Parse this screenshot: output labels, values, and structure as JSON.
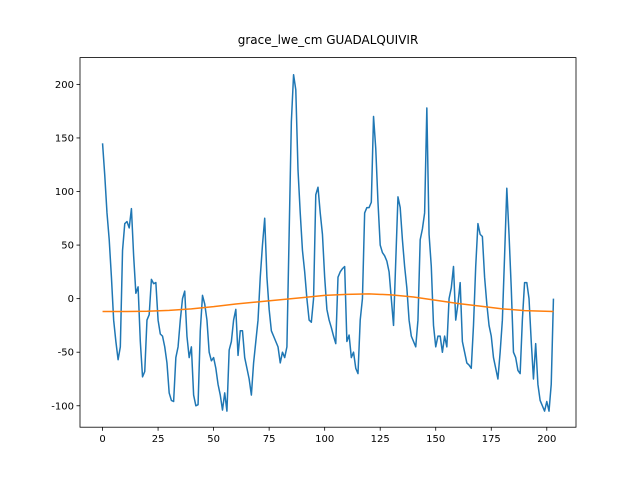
{
  "chart_data": {
    "type": "line",
    "title": "grace_lwe_cm GUADALQUIVIR",
    "xlim": [
      -10.15,
      213.15
    ],
    "xticks": [
      0,
      25,
      50,
      75,
      100,
      125,
      150,
      175,
      200
    ],
    "ylim": [
      -120,
      225
    ],
    "yticks": [
      -100,
      -50,
      0,
      50,
      100,
      150,
      200
    ],
    "series": [
      {
        "color": "#1f77b4",
        "values": [
          145,
          115,
          80,
          55,
          20,
          -20,
          -40,
          -57,
          -45,
          45,
          70,
          72,
          66,
          84,
          40,
          5,
          11,
          -40,
          -73,
          -68,
          -20,
          -15,
          18,
          14,
          15,
          -20,
          -33,
          -35,
          -45,
          -60,
          -88,
          -95,
          -96,
          -55,
          -45,
          -20,
          0,
          7,
          -35,
          -55,
          -45,
          -90,
          -100,
          -99,
          -30,
          3,
          -5,
          -20,
          -50,
          -58,
          -55,
          -65,
          -80,
          -90,
          -104,
          -88,
          -105,
          -48,
          -40,
          -20,
          -10,
          -53,
          -30,
          -30,
          -55,
          -65,
          -75,
          -90,
          -60,
          -40,
          -20,
          20,
          50,
          75,
          20,
          -10,
          -30,
          -35,
          -40,
          -45,
          -60,
          -50,
          -55,
          -45,
          60,
          165,
          209,
          195,
          120,
          80,
          45,
          25,
          0,
          -20,
          -22,
          0,
          97,
          104,
          80,
          60,
          20,
          -10,
          -20,
          -27,
          -35,
          -42,
          20,
          25,
          28,
          30,
          -40,
          -34,
          -55,
          -50,
          -65,
          -70,
          -20,
          0,
          80,
          85,
          85,
          90,
          170,
          140,
          90,
          50,
          43,
          40,
          35,
          25,
          0,
          -25,
          35,
          95,
          85,
          55,
          30,
          10,
          -20,
          -35,
          -40,
          -45,
          -20,
          55,
          65,
          80,
          178,
          60,
          30,
          -25,
          -45,
          -35,
          -35,
          -50,
          -35,
          -45,
          0,
          10,
          30,
          -20,
          -5,
          15,
          -40,
          -50,
          -60,
          -62,
          -65,
          -25,
          30,
          70,
          60,
          58,
          20,
          -5,
          -25,
          -35,
          -55,
          -65,
          -75,
          -50,
          -20,
          40,
          103,
          60,
          10,
          -50,
          -55,
          -67,
          -70,
          -20,
          15,
          15,
          0,
          -40,
          -75,
          -42,
          -80,
          -95,
          -100,
          -105,
          -96,
          -105,
          -80,
          0
        ]
      },
      {
        "color": "#ff7f0e",
        "x": [
          0,
          10,
          20,
          30,
          40,
          50,
          60,
          70,
          80,
          90,
          100,
          110,
          120,
          130,
          140,
          150,
          160,
          170,
          180,
          190,
          203
        ],
        "values": [
          -12,
          -12,
          -11.8,
          -11,
          -9.5,
          -7.5,
          -5,
          -3,
          -1,
          1,
          3,
          4,
          4.5,
          3.5,
          1.5,
          -1.5,
          -4.5,
          -7,
          -9.5,
          -11.2,
          -12
        ]
      }
    ]
  }
}
